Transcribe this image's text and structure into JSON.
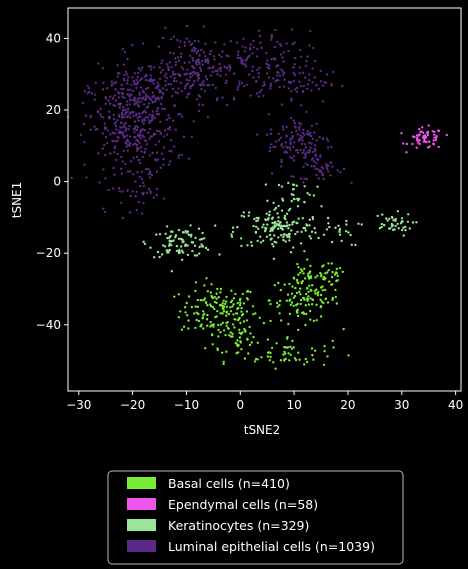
{
  "chart_data": {
    "type": "scatter",
    "xlabel": "tSNE2",
    "ylabel": "tSNE1",
    "xlim": [
      -32,
      41
    ],
    "ylim": [
      -58.5,
      48.5
    ],
    "xticks": [
      -30,
      -20,
      -10,
      0,
      10,
      20,
      30,
      40
    ],
    "yticks": [
      -40,
      -20,
      0,
      20,
      40
    ],
    "xtick_labels": [
      "−30",
      "−20",
      "−10",
      "0",
      "10",
      "20",
      "30",
      "40"
    ],
    "ytick_labels": [
      "−40",
      "−20",
      "0",
      "20",
      "40"
    ],
    "grid": false,
    "legend_position": "below plot",
    "series": [
      {
        "name": "Basal cells (n=410)",
        "color": "#77ee33",
        "n": 410,
        "clusters": [
          {
            "cx": -4,
            "cy": -36,
            "sx": 3.6,
            "sy": 3.6,
            "n": 150
          },
          {
            "cx": 0,
            "cy": -44,
            "sx": 3.0,
            "sy": 3.0,
            "n": 50
          },
          {
            "cx": 9,
            "cy": -48,
            "sx": 4.0,
            "sy": 2.0,
            "n": 50
          },
          {
            "cx": 12,
            "cy": -33,
            "sx": 3.2,
            "sy": 3.2,
            "n": 110
          },
          {
            "cx": 13,
            "cy": -26,
            "sx": 2.5,
            "sy": 2.0,
            "n": 30
          },
          {
            "cx": 17,
            "cy": -27,
            "sx": 1.3,
            "sy": 2.2,
            "n": 20
          }
        ]
      },
      {
        "name": "Ependymal cells (n=58)",
        "color": "#ee55ee",
        "n": 58,
        "clusters": [
          {
            "cx": 34.5,
            "cy": 12,
            "sx": 1.6,
            "sy": 1.5,
            "n": 58
          }
        ]
      },
      {
        "name": "Keratinocytes (n=329)",
        "color": "#99e699",
        "n": 329,
        "clusters": [
          {
            "cx": -11,
            "cy": -17,
            "sx": 3.0,
            "sy": 2.0,
            "n": 90
          },
          {
            "cx": 7,
            "cy": -13,
            "sx": 4.0,
            "sy": 3.0,
            "n": 150
          },
          {
            "cx": 10,
            "cy": -3,
            "sx": 2.0,
            "sy": 2.0,
            "n": 30
          },
          {
            "cx": 28,
            "cy": -12,
            "sx": 2.0,
            "sy": 1.6,
            "n": 40
          },
          {
            "cx": 19,
            "cy": -14,
            "sx": 1.6,
            "sy": 2.0,
            "n": 19
          }
        ]
      },
      {
        "name": "Luminal epithelial cells (n=1039)",
        "color": "#5b2a86",
        "n": 1039,
        "clusters": [
          {
            "cx": -20,
            "cy": 15,
            "sx": 4.0,
            "sy": 8.0,
            "n": 380
          },
          {
            "cx": -16,
            "cy": 25,
            "sx": 5.0,
            "sy": 5.0,
            "n": 150
          },
          {
            "cx": -8,
            "cy": 33,
            "sx": 4.0,
            "sy": 4.0,
            "n": 150
          },
          {
            "cx": 3,
            "cy": 32,
            "sx": 5.0,
            "sy": 5.0,
            "n": 120
          },
          {
            "cx": 10,
            "cy": 28,
            "sx": 4.0,
            "sy": 3.0,
            "n": 60
          },
          {
            "cx": 11,
            "cy": 11,
            "sx": 3.0,
            "sy": 4.0,
            "n": 120
          },
          {
            "cx": 15,
            "cy": 4,
            "sx": 2.0,
            "sy": 2.0,
            "n": 40
          },
          {
            "cx": -17,
            "cy": -4,
            "sx": 2.0,
            "sy": 3.0,
            "n": 19
          }
        ]
      }
    ]
  }
}
